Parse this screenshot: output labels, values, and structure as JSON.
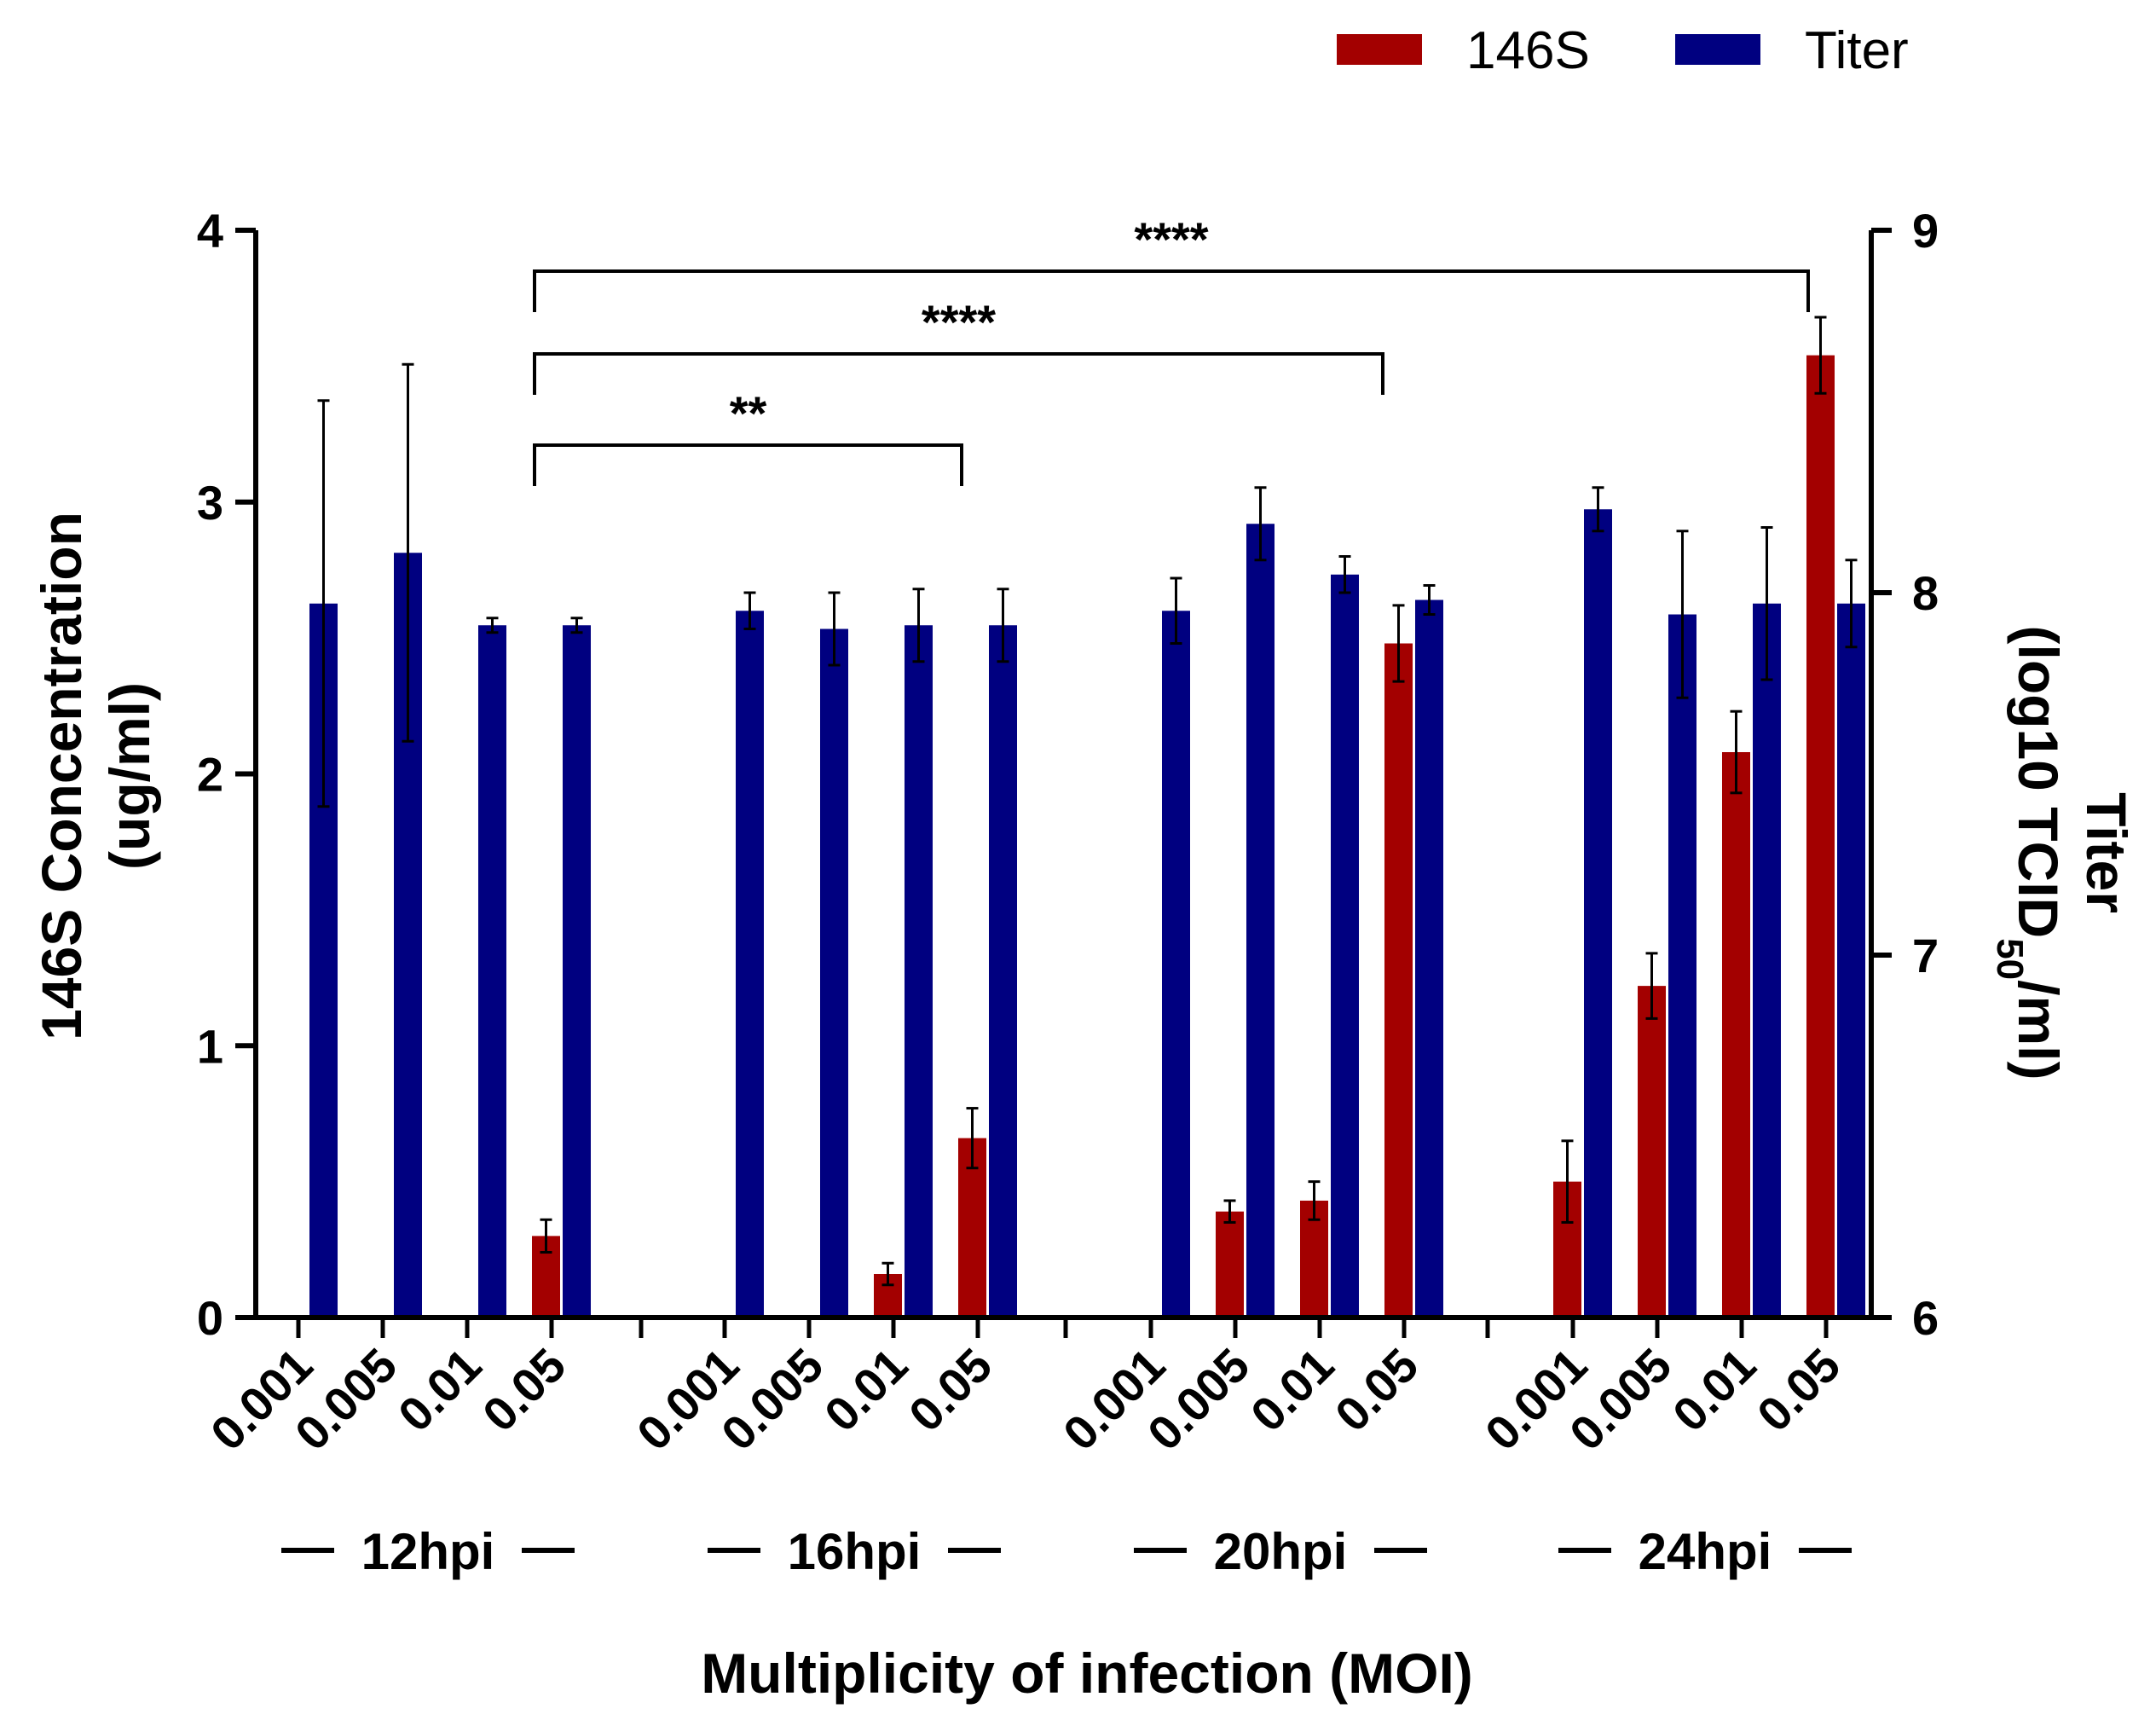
{
  "chart_data": {
    "type": "bar",
    "xlabel": "Multiplicity of infection (MOI)",
    "ylabel_left": "146S Concentration (ug/ml)",
    "ylabel_left_lines": [
      "146S Concentration",
      "(ug/ml)"
    ],
    "ylabel_right_lines": [
      "Titer",
      "(log10 TCID",
      "50",
      "/ml)"
    ],
    "ylim_left": [
      0,
      4
    ],
    "yticks_left": [
      "0",
      "1",
      "2",
      "3",
      "4"
    ],
    "ylim_right": [
      6,
      9
    ],
    "yticks_right": [
      "6",
      "7",
      "8",
      "9"
    ],
    "legend": [
      {
        "name": "146S",
        "color": "#a30000"
      },
      {
        "name": "Titer",
        "color": "#000080"
      }
    ],
    "moi_labels": [
      "0.001",
      "0.005",
      "0.01",
      "0.05"
    ],
    "groups": [
      "12hpi",
      "16hpi",
      "20hpi",
      "24hpi"
    ],
    "series": [
      {
        "name": "146S",
        "axis": "left",
        "color": "#a30000",
        "values": [
          0,
          0,
          0,
          0.3,
          0,
          0,
          0.16,
          0.66,
          0,
          0.39,
          0.43,
          2.48,
          0.5,
          1.22,
          2.08,
          3.54
        ],
        "errors": [
          0,
          0,
          0,
          0.06,
          0,
          0,
          0.04,
          0.11,
          0,
          0.04,
          0.07,
          0.14,
          0.15,
          0.12,
          0.15,
          0.14
        ]
      },
      {
        "name": "Titer",
        "axis": "right",
        "color": "#000080",
        "values": [
          7.97,
          8.11,
          7.91,
          7.91,
          7.95,
          7.9,
          7.91,
          7.91,
          7.95,
          8.19,
          8.05,
          7.98,
          8.23,
          7.94,
          7.97,
          7.97
        ],
        "errors": [
          0.56,
          0.52,
          0.02,
          0.02,
          0.05,
          0.1,
          0.1,
          0.1,
          0.09,
          0.1,
          0.05,
          0.04,
          0.06,
          0.23,
          0.21,
          0.12
        ]
      }
    ],
    "significance": [
      {
        "from": 3,
        "to": 7,
        "label": "**"
      },
      {
        "from": 3,
        "to": 11,
        "label": "****"
      },
      {
        "from": 3,
        "to": 15,
        "label": "****"
      }
    ]
  }
}
